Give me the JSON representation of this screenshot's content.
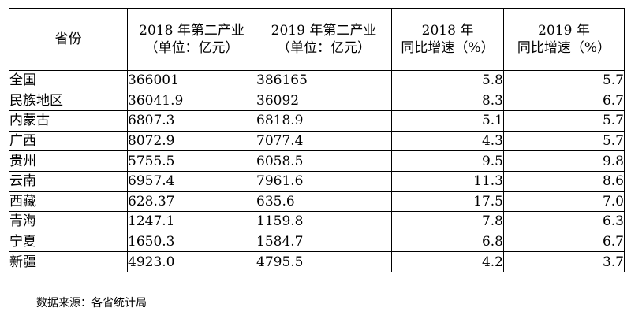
{
  "table": {
    "headers": [
      {
        "lines": [
          "省份"
        ]
      },
      {
        "lines": [
          "2018 年第二产业",
          "（单位：亿元）"
        ]
      },
      {
        "lines": [
          "2019 年第二产业",
          "（单位：亿元）"
        ]
      },
      {
        "lines": [
          "2018 年",
          "同比增速（%）"
        ]
      },
      {
        "lines": [
          "2019 年",
          "同比增速（%）"
        ]
      }
    ],
    "rows": [
      {
        "province": "全国",
        "v2018": "366001",
        "v2019": "386165",
        "g2018": "5.8",
        "g2019": "5.7"
      },
      {
        "province": "民族地区",
        "v2018": "36041.9",
        "v2019": "36092",
        "g2018": "8.3",
        "g2019": "6.7"
      },
      {
        "province": "内蒙古",
        "v2018": "6807.3",
        "v2019": "6818.9",
        "g2018": "5.1",
        "g2019": "5.7"
      },
      {
        "province": "广西",
        "v2018": "8072.9",
        "v2019": "7077.4",
        "g2018": "4.3",
        "g2019": "5.7"
      },
      {
        "province": "贵州",
        "v2018": "5755.5",
        "v2019": "6058.5",
        "g2018": "9.5",
        "g2019": "9.8"
      },
      {
        "province": "云南",
        "v2018": "6957.4",
        "v2019": "7961.6",
        "g2018": "11.3",
        "g2019": "8.6"
      },
      {
        "province": "西藏",
        "v2018": "628.37",
        "v2019": "635.6",
        "g2018": "17.5",
        "g2019": "7.0"
      },
      {
        "province": "青海",
        "v2018": "1247.1",
        "v2019": "1159.8",
        "g2018": "7.8",
        "g2019": "6.3"
      },
      {
        "province": "宁夏",
        "v2018": "1650.3",
        "v2019": "1584.7",
        "g2018": "6.8",
        "g2019": "6.7"
      },
      {
        "province": "新疆",
        "v2018": "4923.0",
        "v2019": "4795.5",
        "g2018": "4.2",
        "g2019": "3.7"
      }
    ]
  },
  "source": "数据来源：各省统计局"
}
